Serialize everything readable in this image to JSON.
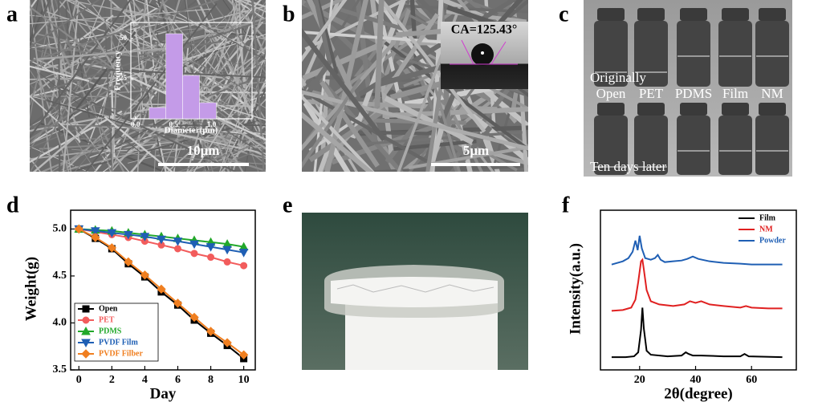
{
  "panels": {
    "a": {
      "label": "a",
      "scale_bar": "10μm"
    },
    "b": {
      "label": "b",
      "contact_angle": "CA=125.43°",
      "scale_bar": "5μm"
    },
    "c": {
      "label": "c",
      "top_caption": "Originally",
      "samples": [
        "Open",
        "PET",
        "PDMS",
        "Film",
        "NM"
      ],
      "bottom_caption": "Ten days later"
    },
    "d": {
      "label": "d"
    },
    "e": {
      "label": "e"
    },
    "f": {
      "label": "f"
    }
  },
  "chart_data": [
    {
      "type": "histogram",
      "xlabel": "Diameter(μm)",
      "ylabel": "Frequency",
      "color": "#c49be8",
      "bins": [
        0.18,
        0.4,
        0.62,
        0.84,
        1.06
      ],
      "values": [
        7,
        53,
        27,
        10
      ],
      "xlim": [
        -0.06,
        1.53
      ],
      "ylim": [
        0,
        60
      ],
      "xticks": [
        {
          "value": 0,
          "label": "0.0"
        },
        0.5,
        {
          "value": 1,
          "label": "1.0"
        }
      ],
      "yticks": [
        25,
        50
      ]
    },
    {
      "type": "line",
      "xlabel": "Day",
      "ylabel": "Weight(g)",
      "legend": "lower left",
      "x": [
        0,
        1,
        2,
        3,
        4,
        5,
        6,
        7,
        8,
        9,
        10
      ],
      "series": [
        {
          "name": "Open",
          "color": "#000000",
          "marker": "square",
          "values": [
            5.0,
            4.9,
            4.79,
            4.63,
            4.49,
            4.33,
            4.19,
            4.03,
            3.89,
            3.76,
            3.62
          ]
        },
        {
          "name": "PET",
          "color": "#f25c5c",
          "marker": "circle",
          "values": [
            5.0,
            4.97,
            4.94,
            4.91,
            4.87,
            4.83,
            4.79,
            4.74,
            4.7,
            4.65,
            4.61
          ]
        },
        {
          "name": "PDMS",
          "color": "#22a82a",
          "marker": "triangle-up",
          "values": [
            5.0,
            4.99,
            4.98,
            4.96,
            4.94,
            4.92,
            4.9,
            4.88,
            4.86,
            4.84,
            4.81
          ]
        },
        {
          "name": "PVDF Film",
          "color": "#1f5fb4",
          "marker": "triangle-down",
          "values": [
            5.0,
            4.98,
            4.96,
            4.94,
            4.92,
            4.89,
            4.87,
            4.84,
            4.81,
            4.78,
            4.75
          ]
        },
        {
          "name": "PVDF Filber",
          "color": "#f07f20",
          "marker": "diamond",
          "values": [
            5.0,
            4.91,
            4.8,
            4.65,
            4.51,
            4.36,
            4.21,
            4.06,
            3.91,
            3.79,
            3.66
          ]
        }
      ],
      "xlim": [
        -0.5,
        10.7
      ],
      "ylim": [
        3.5,
        5.2
      ],
      "xticks": [
        0,
        2,
        4,
        6,
        8,
        10
      ],
      "yticks": [
        3.5,
        {
          "value": 4,
          "label": "4.0"
        },
        4.5,
        {
          "value": 5,
          "label": "5.0"
        }
      ]
    },
    {
      "type": "line",
      "xlabel": "2θ(degree)",
      "ylabel": "Intensity(a.u.)",
      "legend": "upper right",
      "series": [
        {
          "name": "Film",
          "color": "#000000",
          "x": [
            10,
            15,
            18,
            19.5,
            20.5,
            21,
            21.5,
            22.5,
            24,
            30,
            35,
            36.5,
            37.5,
            39,
            42,
            50,
            56,
            57.5,
            59,
            65,
            71
          ],
          "values": [
            0.8,
            0.8,
            0.85,
            1.1,
            2.5,
            3.9,
            2.6,
            1.2,
            0.95,
            0.85,
            0.9,
            1.1,
            1.0,
            0.9,
            0.9,
            0.85,
            0.85,
            1.0,
            0.85,
            0.82,
            0.8
          ]
        },
        {
          "name": "NM",
          "color": "#e02020",
          "x": [
            10,
            14,
            17,
            18.5,
            19.5,
            20.5,
            21,
            21.5,
            22.5,
            24,
            27,
            32,
            36,
            38,
            40,
            42,
            45,
            50,
            56,
            58,
            60,
            66,
            71
          ],
          "values": [
            3.7,
            3.75,
            3.9,
            4.4,
            5.5,
            6.8,
            6.9,
            6.3,
            5.0,
            4.3,
            4.1,
            4.0,
            4.1,
            4.3,
            4.2,
            4.3,
            4.1,
            4.0,
            3.9,
            4.0,
            3.9,
            3.85,
            3.85
          ]
        },
        {
          "name": "Powder",
          "color": "#1f5fb4",
          "x": [
            10,
            14,
            16,
            17.5,
            18.5,
            19.3,
            20,
            20.8,
            22,
            24,
            25.5,
            26.5,
            27.5,
            29,
            32,
            35,
            37,
            39,
            41,
            45,
            50,
            56,
            60,
            66,
            71
          ],
          "values": [
            6.6,
            6.8,
            7.0,
            7.4,
            8.1,
            7.5,
            8.4,
            7.6,
            7.0,
            6.9,
            7.0,
            7.2,
            6.9,
            6.75,
            6.8,
            6.85,
            6.95,
            7.1,
            6.95,
            6.8,
            6.7,
            6.65,
            6.6,
            6.6,
            6.6
          ]
        }
      ],
      "xlim": [
        6,
        76
      ],
      "ylim": [
        0,
        10
      ],
      "xticks": [
        20,
        40,
        60
      ]
    }
  ]
}
